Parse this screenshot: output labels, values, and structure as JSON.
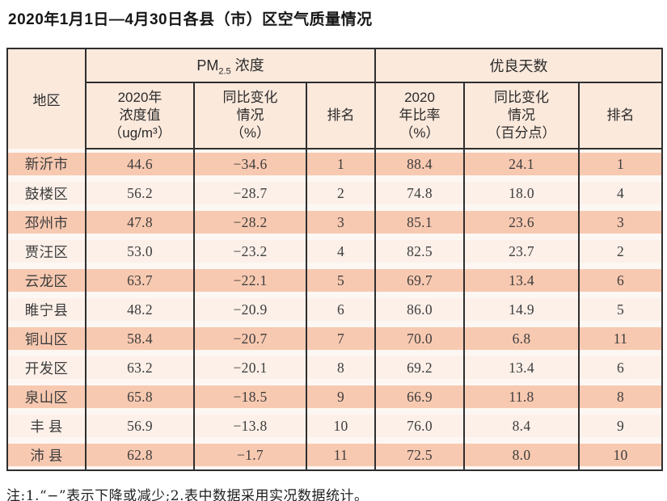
{
  "title": "2020年1月1日—4月30日各县（市）区空气质量情况",
  "table": {
    "region_header": "地区",
    "pm_group": {
      "prefix": "PM",
      "sub": "2.5",
      "suffix": " 浓度"
    },
    "good_days_header": "优良天数",
    "sub_headers": [
      "2020年\n浓度值\n（ug/m³）",
      "同比变化\n情况\n（%）",
      "排名",
      "2020\n年比率\n（%）",
      "同比变化\n情况\n（百分点）",
      "排名"
    ],
    "rows": [
      {
        "region": "新沂市",
        "cells": [
          "44.6",
          "−34.6",
          "1",
          "88.4",
          "24.1",
          "1"
        ]
      },
      {
        "region": "鼓楼区",
        "cells": [
          "56.2",
          "−28.7",
          "2",
          "74.8",
          "18.0",
          "4"
        ]
      },
      {
        "region": "邳州市",
        "cells": [
          "47.8",
          "−28.2",
          "3",
          "85.1",
          "23.6",
          "3"
        ]
      },
      {
        "region": "贾汪区",
        "cells": [
          "53.0",
          "−23.2",
          "4",
          "82.5",
          "23.7",
          "2"
        ]
      },
      {
        "region": "云龙区",
        "cells": [
          "63.7",
          "−22.1",
          "5",
          "69.7",
          "13.4",
          "6"
        ]
      },
      {
        "region": "睢宁县",
        "cells": [
          "48.2",
          "−20.9",
          "6",
          "86.0",
          "14.9",
          "5"
        ]
      },
      {
        "region": "铜山区",
        "cells": [
          "58.4",
          "−20.7",
          "7",
          "70.0",
          "6.8",
          "11"
        ]
      },
      {
        "region": "开发区",
        "cells": [
          "63.2",
          "−20.1",
          "8",
          "69.2",
          "13.4",
          "6"
        ]
      },
      {
        "region": "泉山区",
        "cells": [
          "65.8",
          "−18.5",
          "9",
          "66.9",
          "11.8",
          "8"
        ]
      },
      {
        "region": "丰 县",
        "cells": [
          "56.9",
          "−13.8",
          "10",
          "76.0",
          "8.4",
          "9"
        ]
      },
      {
        "region": "沛 县",
        "cells": [
          "62.8",
          "−1.7",
          "11",
          "72.5",
          "8.0",
          "10"
        ]
      }
    ]
  },
  "note": "注:1.“−”表示下降或减少;2.表中数据采用实况数据统计。",
  "colors": {
    "header_bg": "#fbe9dc",
    "row_odd_bg": "#f8c9b1",
    "row_even_bg": "#fcf0e9",
    "gap_bg": "#fdf7f3",
    "border": "#2e2e2e"
  }
}
